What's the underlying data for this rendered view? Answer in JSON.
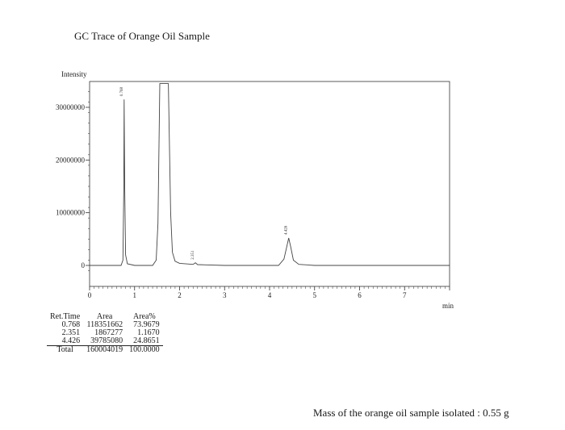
{
  "title": "GC Trace of Orange Oil Sample",
  "chart_data": {
    "type": "line",
    "title": "GC Trace of Orange Oil Sample",
    "ylabel": "Intensity",
    "xlabel": "min",
    "xlim": [
      0,
      8.0
    ],
    "ylim": [
      -1500000,
      34500000
    ],
    "y_ticks": [
      0,
      10000000,
      20000000,
      30000000
    ],
    "y_tick_labels": [
      "0",
      "10000000",
      "20000000",
      "30000000"
    ],
    "x_ticks": [
      0,
      1,
      2,
      3,
      4,
      5,
      6,
      7
    ],
    "x_tick_labels": [
      "0",
      "1",
      "2",
      "3",
      "4",
      "5",
      "6",
      "7"
    ],
    "grid": false,
    "legend": "none",
    "peak_labels": [
      "0.768",
      "2.351",
      "4.426"
    ],
    "series": [
      {
        "x": [
          0.0,
          0.7,
          0.74,
          0.76,
          0.768,
          0.78,
          0.8,
          0.84,
          1.0,
          1.4,
          1.48,
          1.52,
          1.56,
          1.75,
          1.8,
          1.84,
          1.9,
          2.0,
          2.3,
          2.351,
          2.4,
          3.0,
          4.2,
          4.32,
          4.38,
          4.426,
          4.47,
          4.53,
          4.65,
          5.0,
          8.0
        ],
        "y": [
          0,
          0,
          1000000,
          15000000,
          31500000,
          15000000,
          2000000,
          300000,
          0,
          0,
          1000000,
          8000000,
          34500000,
          34500000,
          10000000,
          2500000,
          800000,
          400000,
          200000,
          500000,
          150000,
          0,
          0,
          1200000,
          3500000,
          5200000,
          3500000,
          1000000,
          200000,
          0,
          0
        ]
      }
    ]
  },
  "table": {
    "headers": [
      "Ret.Time",
      "Area",
      "Area%"
    ],
    "rows": [
      [
        "0.768",
        "118351662",
        "73.9679"
      ],
      [
        "2.351",
        "1867277",
        "1.1670"
      ],
      [
        "4.426",
        "39785080",
        "24.8651"
      ]
    ],
    "total": [
      "Total",
      "160004019",
      "100.0000"
    ]
  },
  "footer_note": "Mass of the orange oil sample isolated : 0.55 g"
}
